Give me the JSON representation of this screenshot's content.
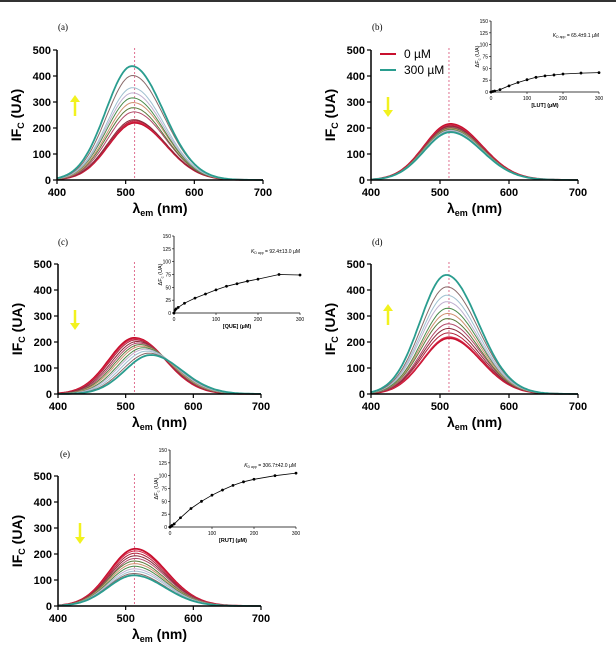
{
  "legend": {
    "entries": [
      {
        "label": "0 µM",
        "color": "#c8102e"
      },
      {
        "label": "300 µM",
        "color": "#2a9d8f"
      }
    ]
  },
  "arrow_color": "#f2f21e",
  "reference_line_nm": 513,
  "chart_data": [
    {
      "panel": "(a)",
      "type": "line",
      "xlabel": {
        "text": "λ",
        "sub": "em",
        "unit": " (nm)"
      },
      "ylabel": {
        "text": "IF",
        "sub": "C",
        "unit": " (UA)"
      },
      "xlim": [
        400,
        700
      ],
      "ylim": [
        0,
        500
      ],
      "xticks": [
        400,
        500,
        600,
        700
      ],
      "yticks": [
        0,
        100,
        200,
        300,
        400,
        500
      ],
      "arrow": "up",
      "series": [
        {
          "peak_nm": 513,
          "peak_IF": 220
        },
        {
          "peak_nm": 513,
          "peak_IF": 224
        },
        {
          "peak_nm": 513,
          "peak_IF": 228
        },
        {
          "peak_nm": 512,
          "peak_IF": 232
        },
        {
          "peak_nm": 512,
          "peak_IF": 262
        },
        {
          "peak_nm": 511,
          "peak_IF": 278
        },
        {
          "peak_nm": 511,
          "peak_IF": 298
        },
        {
          "peak_nm": 510,
          "peak_IF": 316
        },
        {
          "peak_nm": 510,
          "peak_IF": 335
        },
        {
          "peak_nm": 510,
          "peak_IF": 355
        },
        {
          "peak_nm": 510,
          "peak_IF": 402
        },
        {
          "peak_nm": 509,
          "peak_IF": 438
        }
      ]
    },
    {
      "panel": "(b)",
      "type": "line",
      "xlabel": {
        "text": "λ",
        "sub": "em",
        "unit": " (nm)"
      },
      "ylabel": {
        "text": "IF",
        "sub": "C",
        "unit": " (UA)"
      },
      "xlim": [
        400,
        700
      ],
      "ylim": [
        0,
        500
      ],
      "xticks": [
        400,
        500,
        600,
        700
      ],
      "yticks": [
        0,
        100,
        200,
        300,
        400,
        500
      ],
      "arrow": "down",
      "series": [
        {
          "peak_nm": 515,
          "peak_IF": 216
        },
        {
          "peak_nm": 515,
          "peak_IF": 212
        },
        {
          "peak_nm": 515,
          "peak_IF": 209
        },
        {
          "peak_nm": 515,
          "peak_IF": 206
        },
        {
          "peak_nm": 515,
          "peak_IF": 203
        },
        {
          "peak_nm": 515,
          "peak_IF": 200
        },
        {
          "peak_nm": 515,
          "peak_IF": 197
        },
        {
          "peak_nm": 515,
          "peak_IF": 194
        },
        {
          "peak_nm": 515,
          "peak_IF": 191
        },
        {
          "peak_nm": 515,
          "peak_IF": 188
        },
        {
          "peak_nm": 515,
          "peak_IF": 186
        },
        {
          "peak_nm": 515,
          "peak_IF": 184
        }
      ],
      "inset": {
        "xlabel": "[LUT] (µM)",
        "ylabel": "ΔF",
        "ylabel_sub": "c",
        "ylabel_unit": " (UA)",
        "xlim": [
          0,
          300
        ],
        "ylim": [
          0,
          150
        ],
        "xticks": [
          0,
          100,
          200,
          300
        ],
        "yticks": [
          0,
          25,
          50,
          75,
          100,
          125,
          150
        ],
        "annotation": "K",
        "annotation_sub": "D app",
        "annotation_value": " = 65.4±9.1 µM",
        "x": [
          0,
          5,
          10,
          25,
          50,
          75,
          100,
          125,
          150,
          175,
          200,
          250,
          300
        ],
        "y": [
          0,
          1,
          2,
          5,
          13,
          20,
          26,
          31,
          34,
          36,
          38,
          40,
          41
        ]
      }
    },
    {
      "panel": "(c)",
      "type": "line",
      "xlabel": {
        "text": "λ",
        "sub": "em",
        "unit": " (nm)"
      },
      "ylabel": {
        "text": "IF",
        "sub": "C",
        "unit": " (UA)"
      },
      "xlim": [
        400,
        700
      ],
      "ylim": [
        0,
        500
      ],
      "xticks": [
        400,
        500,
        600,
        700
      ],
      "yticks": [
        0,
        100,
        200,
        300,
        400,
        500
      ],
      "arrow": "down",
      "series": [
        {
          "peak_nm": 513,
          "peak_IF": 216
        },
        {
          "peak_nm": 514,
          "peak_IF": 212
        },
        {
          "peak_nm": 515,
          "peak_IF": 208
        },
        {
          "peak_nm": 517,
          "peak_IF": 202
        },
        {
          "peak_nm": 519,
          "peak_IF": 196
        },
        {
          "peak_nm": 521,
          "peak_IF": 190
        },
        {
          "peak_nm": 523,
          "peak_IF": 184
        },
        {
          "peak_nm": 526,
          "peak_IF": 178
        },
        {
          "peak_nm": 528,
          "peak_IF": 172
        },
        {
          "peak_nm": 531,
          "peak_IF": 165
        },
        {
          "peak_nm": 534,
          "peak_IF": 157
        },
        {
          "peak_nm": 537,
          "peak_IF": 150
        }
      ],
      "inset": {
        "xlabel": "[QUE] (µM)",
        "ylabel": "ΔF",
        "ylabel_sub": "c",
        "ylabel_unit": " (UA)",
        "xlim": [
          0,
          300
        ],
        "ylim": [
          0,
          150
        ],
        "xticks": [
          0,
          100,
          200,
          300
        ],
        "yticks": [
          0,
          25,
          50,
          75,
          100,
          125,
          150
        ],
        "annotation": "K",
        "annotation_sub": "D app",
        "annotation_value": " = 92.4±13.0 µM",
        "x": [
          0,
          2,
          5,
          10,
          25,
          50,
          75,
          100,
          125,
          150,
          175,
          200,
          250,
          300
        ],
        "y": [
          0,
          5,
          8,
          11,
          19,
          29,
          37,
          45,
          52,
          57,
          62,
          66,
          75,
          74
        ]
      }
    },
    {
      "panel": "(d)",
      "type": "line",
      "xlabel": {
        "text": "λ",
        "sub": "em",
        "unit": " (nm)"
      },
      "ylabel": {
        "text": "IF",
        "sub": "C",
        "unit": " (UA)"
      },
      "xlim": [
        400,
        700
      ],
      "ylim": [
        0,
        500
      ],
      "xticks": [
        400,
        500,
        600,
        700
      ],
      "yticks": [
        0,
        100,
        200,
        300,
        400,
        500
      ],
      "arrow": "up",
      "series": [
        {
          "peak_nm": 513,
          "peak_IF": 215
        },
        {
          "peak_nm": 513,
          "peak_IF": 220
        },
        {
          "peak_nm": 512,
          "peak_IF": 235
        },
        {
          "peak_nm": 512,
          "peak_IF": 252
        },
        {
          "peak_nm": 512,
          "peak_IF": 270
        },
        {
          "peak_nm": 511,
          "peak_IF": 290
        },
        {
          "peak_nm": 511,
          "peak_IF": 310
        },
        {
          "peak_nm": 511,
          "peak_IF": 330
        },
        {
          "peak_nm": 510,
          "peak_IF": 355
        },
        {
          "peak_nm": 510,
          "peak_IF": 380
        },
        {
          "peak_nm": 510,
          "peak_IF": 412
        },
        {
          "peak_nm": 509,
          "peak_IF": 458
        }
      ]
    },
    {
      "panel": "(e)",
      "type": "line",
      "xlabel": {
        "text": "λ",
        "sub": "em",
        "unit": " (nm)"
      },
      "ylabel": {
        "text": "IF",
        "sub": "C",
        "unit": " (UA)"
      },
      "xlim": [
        400,
        700
      ],
      "ylim": [
        0,
        500
      ],
      "xticks": [
        400,
        500,
        600,
        700
      ],
      "yticks": [
        0,
        100,
        200,
        300,
        400,
        500
      ],
      "arrow": "down",
      "series": [
        {
          "peak_nm": 514,
          "peak_IF": 220
        },
        {
          "peak_nm": 514,
          "peak_IF": 212
        },
        {
          "peak_nm": 514,
          "peak_IF": 203
        },
        {
          "peak_nm": 514,
          "peak_IF": 193
        },
        {
          "peak_nm": 514,
          "peak_IF": 183
        },
        {
          "peak_nm": 513,
          "peak_IF": 173
        },
        {
          "peak_nm": 513,
          "peak_IF": 163
        },
        {
          "peak_nm": 513,
          "peak_IF": 153
        },
        {
          "peak_nm": 513,
          "peak_IF": 143
        },
        {
          "peak_nm": 513,
          "peak_IF": 134
        },
        {
          "peak_nm": 512,
          "peak_IF": 125
        },
        {
          "peak_nm": 512,
          "peak_IF": 118
        }
      ],
      "inset": {
        "xlabel": "[RUT] (µM)",
        "ylabel": "ΔF",
        "ylabel_sub": "c",
        "ylabel_unit": " (UA)",
        "xlim": [
          0,
          300
        ],
        "ylim": [
          0,
          150
        ],
        "xticks": [
          0,
          100,
          200,
          300
        ],
        "yticks": [
          0,
          25,
          50,
          75,
          100,
          125,
          150
        ],
        "annotation": "K",
        "annotation_sub": "D app",
        "annotation_value": " = 306.7±42.0 µM",
        "x": [
          0,
          2,
          5,
          10,
          25,
          50,
          75,
          100,
          125,
          150,
          175,
          200,
          250,
          300
        ],
        "y": [
          0,
          1,
          3,
          6,
          18,
          36,
          50,
          62,
          72,
          81,
          88,
          93,
          100,
          105
        ]
      }
    }
  ]
}
